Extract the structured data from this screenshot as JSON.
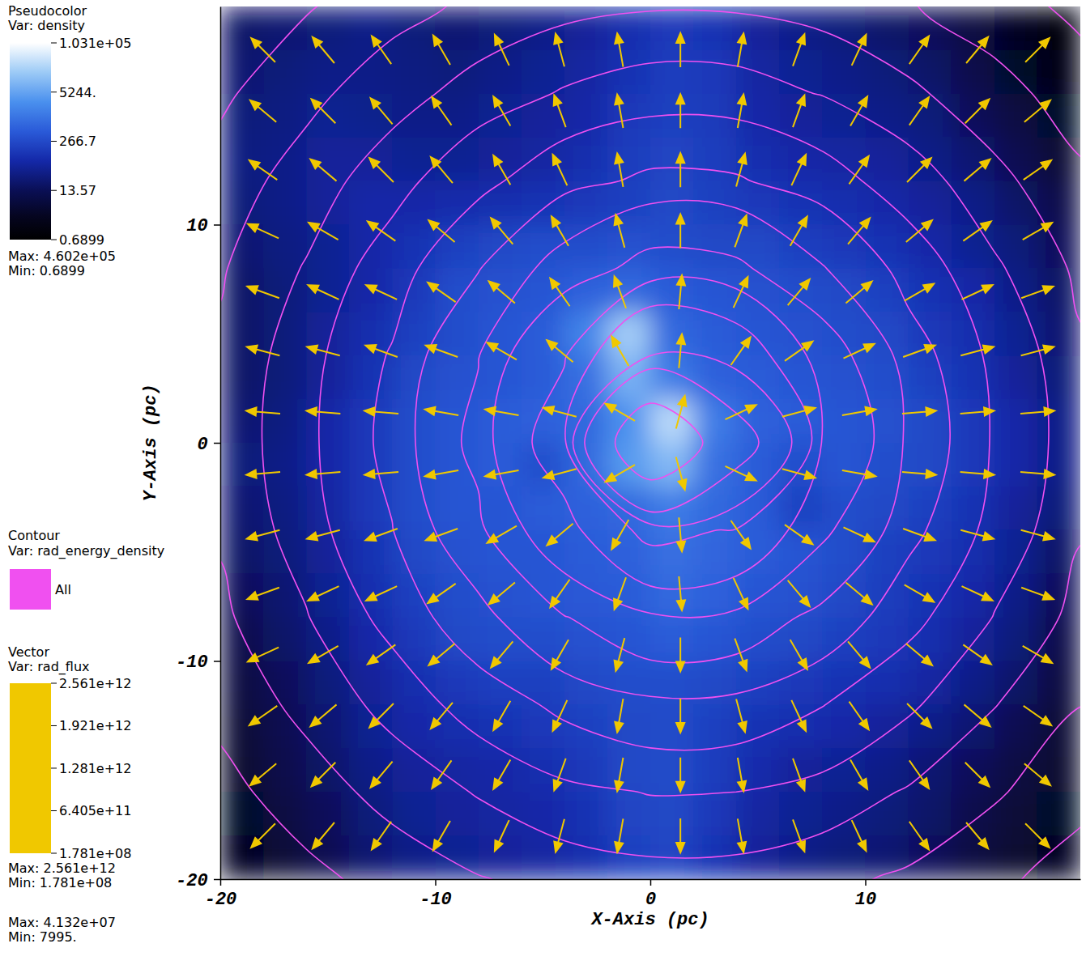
{
  "chart_data": {
    "type": "field",
    "xlabel": "X-Axis (pc)",
    "ylabel": "Y-Axis (pc)",
    "xlim": [
      -20,
      20
    ],
    "ylim": [
      -20,
      20
    ],
    "xticks": [
      -20,
      -10,
      0,
      10
    ],
    "yticks": [
      -20,
      -10,
      0,
      10
    ],
    "pseudocolor": {
      "title": "Pseudocolor",
      "var": "Var: density",
      "log": true,
      "colorbar_lim": [
        0.6899,
        103100
      ],
      "colorbar_ticks": [
        {
          "value": 103100,
          "label": "1.031e+05"
        },
        {
          "value": 5244,
          "label": "5244."
        },
        266.7,
        13.57,
        0.6899
      ],
      "max": {
        "value": 460200,
        "label": "Max: 4.602e+05"
      },
      "min": {
        "value": 0.6899,
        "label": "Min: 0.6899"
      },
      "x": [
        -19,
        -17,
        -15,
        -13,
        -11,
        -9,
        -7,
        -5,
        -3,
        -1,
        1,
        3,
        5,
        7,
        9,
        11,
        13,
        15,
        17,
        19
      ],
      "y": [
        19,
        17,
        15,
        13,
        11,
        9,
        7,
        5,
        3,
        1,
        -1,
        -3,
        -5,
        -7,
        -9,
        -11,
        -13,
        -15,
        -17,
        -19
      ],
      "cells": [
        [
          20,
          25,
          30,
          40,
          30,
          25,
          30,
          40,
          60,
          100,
          150,
          120,
          60,
          40,
          30,
          20,
          15,
          8,
          3,
          1.5
        ],
        [
          25,
          30,
          40,
          40,
          35,
          30,
          40,
          50,
          70,
          120,
          180,
          150,
          70,
          50,
          40,
          30,
          20,
          10,
          4,
          2
        ],
        [
          30,
          35,
          50,
          45,
          40,
          40,
          50,
          60,
          80,
          150,
          200,
          160,
          80,
          60,
          50,
          40,
          30,
          15,
          8,
          4
        ],
        [
          35,
          40,
          60,
          60,
          50,
          50,
          60,
          70,
          100,
          180,
          220,
          180,
          100,
          80,
          70,
          60,
          40,
          25,
          12,
          6
        ],
        [
          30,
          40,
          60,
          80,
          80,
          90,
          100,
          120,
          150,
          200,
          250,
          200,
          150,
          120,
          100,
          80,
          60,
          40,
          20,
          10
        ],
        [
          25,
          35,
          50,
          80,
          120,
          200,
          250,
          300,
          300,
          350,
          300,
          250,
          250,
          200,
          150,
          120,
          80,
          50,
          30,
          15
        ],
        [
          20,
          30,
          50,
          80,
          150,
          300,
          350,
          400,
          600,
          800,
          500,
          400,
          350,
          300,
          250,
          200,
          120,
          80,
          40,
          20
        ],
        [
          20,
          30,
          60,
          100,
          200,
          300,
          400,
          500,
          2000,
          20000,
          800,
          500,
          400,
          350,
          300,
          250,
          150,
          100,
          50,
          25
        ],
        [
          20,
          30,
          60,
          120,
          250,
          350,
          400,
          500,
          1000,
          8000,
          1500,
          600,
          500,
          400,
          350,
          300,
          200,
          120,
          60,
          30
        ],
        [
          25,
          35,
          80,
          150,
          300,
          400,
          500,
          600,
          800,
          3000,
          30000,
          1500,
          600,
          500,
          400,
          350,
          250,
          150,
          80,
          40
        ],
        [
          30,
          40,
          80,
          150,
          300,
          400,
          500,
          300,
          800,
          4000,
          10000,
          1000,
          500,
          300,
          400,
          300,
          250,
          150,
          80,
          40
        ],
        [
          25,
          35,
          70,
          150,
          300,
          400,
          400,
          500,
          600,
          800,
          1500,
          800,
          500,
          200,
          300,
          250,
          200,
          120,
          60,
          30
        ],
        [
          20,
          30,
          60,
          120,
          250,
          350,
          400,
          400,
          500,
          600,
          1000,
          700,
          500,
          400,
          300,
          200,
          150,
          100,
          50,
          20
        ],
        [
          15,
          25,
          50,
          100,
          200,
          300,
          350,
          400,
          450,
          500,
          800,
          600,
          400,
          350,
          250,
          180,
          120,
          80,
          40,
          15
        ],
        [
          10,
          20,
          40,
          80,
          150,
          250,
          300,
          300,
          350,
          400,
          500,
          400,
          300,
          250,
          200,
          150,
          100,
          60,
          30,
          10
        ],
        [
          8,
          15,
          30,
          60,
          100,
          150,
          200,
          200,
          250,
          300,
          300,
          250,
          200,
          150,
          120,
          100,
          70,
          40,
          20,
          8
        ],
        [
          6,
          12,
          25,
          50,
          80,
          100,
          120,
          150,
          200,
          250,
          280,
          200,
          120,
          100,
          80,
          60,
          40,
          25,
          12,
          6
        ],
        [
          5,
          10,
          20,
          40,
          60,
          70,
          80,
          100,
          150,
          250,
          280,
          180,
          90,
          60,
          50,
          40,
          25,
          15,
          8,
          5
        ],
        [
          4,
          8,
          15,
          30,
          50,
          60,
          70,
          80,
          120,
          220,
          250,
          150,
          70,
          50,
          40,
          30,
          20,
          10,
          6,
          4
        ],
        [
          3,
          6,
          12,
          25,
          40,
          50,
          60,
          70,
          100,
          200,
          220,
          120,
          60,
          40,
          30,
          25,
          15,
          8,
          5,
          3
        ]
      ]
    },
    "contour": {
      "title": "Contour",
      "var": "Var: rad_energy_density",
      "label": "All",
      "color": "#f050f0",
      "max": {
        "value": 41320000,
        "label": "Max: 4.132e+07"
      },
      "min": {
        "value": 7995,
        "label": "Min: 7995."
      },
      "levels": [
        15000,
        20000,
        27000,
        36000,
        50000,
        70000,
        100000,
        150000,
        250000,
        400000,
        700000,
        1200000,
        2500000
      ],
      "x": [
        -20,
        -16,
        -12,
        -8,
        -4,
        0,
        4,
        8,
        12,
        16,
        20
      ],
      "y": [
        20,
        16,
        12,
        8,
        4,
        0,
        -4,
        -8,
        -12,
        -16,
        -20
      ],
      "cells": [
        [
          11900,
          14600,
          17800,
          21300,
          24400,
          26200,
          25900,
          23700,
          20400,
          16900,
          13900
        ],
        [
          14200,
          18300,
          23700,
          30300,
          37000,
          41300,
          40700,
          35500,
          28600,
          22200,
          17200
        ],
        [
          16800,
          22800,
          31800,
          45000,
          61700,
          74600,
          72500,
          57500,
          41300,
          29200,
          21100
        ],
        [
          19300,
          27600,
          42000,
          68500,
          116000,
          172000,
          161000,
          102000,
          60200,
          37600,
          25100
        ],
        [
          21100,
          31400,
          51500,
          98000,
          238000,
          690000,
          540000,
          185000,
          82000,
          45000,
          28200
        ],
        [
          21600,
          32700,
          54900,
          111000,
          333000,
          4000000,
          1540000,
          238000,
          90900,
          47600,
          29200
        ],
        [
          20700,
          30700,
          49500,
          90900,
          200000,
          455000,
          385000,
          161000,
          76900,
          43500,
          27600
        ],
        [
          18700,
          26500,
          39400,
          61700,
          98000,
          135000,
          128000,
          87700,
          54900,
          35500,
          24200
        ],
        [
          16200,
          21600,
          29600,
          40700,
          53800,
          63300,
          61700,
          50500,
          37600,
          27300,
          20100
        ],
        [
          13600,
          17300,
          22000,
          27600,
          33100,
          36500,
          36000,
          31800,
          26200,
          20700,
          16300
        ],
        [
          11300,
          13800,
          16600,
          19600,
          22200,
          23700,
          23500,
          21600,
          18900,
          15900,
          13100
        ]
      ]
    },
    "vector": {
      "title": "Vector",
      "var": "Var: rad_flux",
      "color": "#f0c800",
      "colorbar_lim": [
        178100000,
        2561000000000
      ],
      "colorbar_ticks": [
        {
          "value": 2561000000000,
          "label": "2.561e+12"
        },
        {
          "value": 1921000000000,
          "label": "1.921e+12"
        },
        {
          "value": 1281000000000,
          "label": "1.281e+12"
        },
        {
          "value": 640500000000,
          "label": "6.405e+11"
        },
        {
          "value": 178100000,
          "label": "1.781e+08"
        }
      ],
      "max": {
        "value": 2561000000000,
        "label": "Max: 2.561e+12"
      },
      "min": {
        "value": 178100000,
        "label": "Min: 1.781e+08"
      },
      "x": [
        -18,
        -15.2,
        -12.5,
        -9.7,
        -6.9,
        -4.2,
        -1.4,
        1.4,
        4.2,
        6.9,
        9.7,
        12.5,
        15.2,
        18
      ],
      "y": [
        18,
        15.2,
        12.5,
        9.7,
        6.9,
        4.2,
        1.4,
        -1.4,
        -4.2,
        -6.9,
        -9.7,
        -12.5,
        -15.2,
        -18
      ],
      "angle": [
        [
          135,
          130,
          125,
          120,
          115,
          105,
          100,
          90,
          80,
          70,
          65,
          55,
          50,
          45
        ],
        [
          140,
          135,
          130,
          125,
          120,
          110,
          100,
          90,
          80,
          70,
          60,
          55,
          45,
          40
        ],
        [
          145,
          140,
          135,
          130,
          120,
          115,
          100,
          90,
          75,
          65,
          55,
          45,
          40,
          35
        ],
        [
          155,
          150,
          145,
          140,
          130,
          120,
          105,
          90,
          70,
          60,
          50,
          40,
          35,
          30
        ],
        [
          160,
          155,
          155,
          145,
          140,
          125,
          110,
          85,
          65,
          50,
          40,
          30,
          25,
          20
        ],
        [
          165,
          165,
          160,
          160,
          150,
          140,
          120,
          85,
          55,
          35,
          25,
          20,
          15,
          15
        ],
        [
          175,
          175,
          175,
          170,
          170,
          165,
          150,
          75,
          25,
          15,
          10,
          5,
          5,
          5
        ],
        [
          -175,
          -175,
          -175,
          -170,
          -170,
          -165,
          -150,
          -75,
          -25,
          -15,
          -10,
          -5,
          -5,
          -5
        ],
        [
          -165,
          -165,
          -160,
          -160,
          -150,
          -140,
          -120,
          -85,
          -55,
          -35,
          -25,
          -20,
          -15,
          -15
        ],
        [
          -160,
          -155,
          -155,
          -145,
          -140,
          -125,
          -110,
          -85,
          -65,
          -50,
          -40,
          -30,
          -25,
          -20
        ],
        [
          -155,
          -150,
          -145,
          -140,
          -130,
          -120,
          -105,
          -90,
          -70,
          -60,
          -50,
          -40,
          -35,
          -30
        ],
        [
          -145,
          -140,
          -135,
          -130,
          -120,
          -115,
          -100,
          -90,
          -75,
          -65,
          -55,
          -45,
          -40,
          -35
        ],
        [
          -140,
          -135,
          -130,
          -125,
          -120,
          -110,
          -100,
          -90,
          -80,
          -70,
          -60,
          -55,
          -45,
          -40
        ],
        [
          -135,
          -130,
          -125,
          -120,
          -115,
          -105,
          -100,
          -90,
          -80,
          -70,
          -65,
          -55,
          -50,
          -45
        ]
      ]
    }
  }
}
